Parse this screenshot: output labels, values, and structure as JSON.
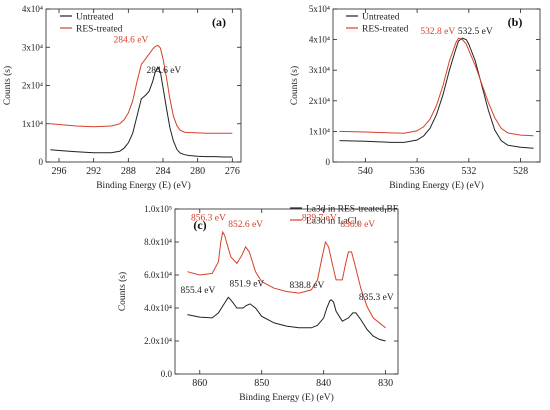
{
  "chart_data": [
    {
      "id": "a",
      "type": "line",
      "panel_label": "(a)",
      "xlabel": "Binding Energy (E) (eV)",
      "ylabel": "Counts (s)",
      "xlim": [
        297.5,
        275.0
      ],
      "ylim": [
        0,
        40000
      ],
      "x_reversed": true,
      "x_ticks": [
        296,
        292,
        288,
        284,
        280,
        276
      ],
      "y_ticks": [
        {
          "value": 0,
          "label": "0"
        },
        {
          "value": 10000,
          "label": "1x10⁴"
        },
        {
          "value": 20000,
          "label": "2x10⁴"
        },
        {
          "value": 30000,
          "label": "3x10⁴"
        },
        {
          "value": 40000,
          "label": "4x10⁴"
        }
      ],
      "legend_position": "top-left",
      "series": [
        {
          "name": "Untreated",
          "color": "#222222",
          "x": [
            297,
            296,
            294,
            292,
            290,
            289,
            288.5,
            288,
            287.5,
            287,
            286.5,
            286,
            285.6,
            285.2,
            284.9,
            284.6,
            284.3,
            284,
            283.6,
            283.2,
            282.8,
            282.4,
            282,
            281.5,
            281,
            280,
            279,
            278,
            277,
            276
          ],
          "y": [
            3200,
            3000,
            2700,
            2400,
            2400,
            2800,
            3600,
            5000,
            7500,
            12000,
            16500,
            17500,
            18500,
            21000,
            23500,
            24800,
            23500,
            19500,
            14000,
            9000,
            5500,
            3300,
            2300,
            1900,
            1700,
            1500,
            1400,
            1400,
            1300,
            1300
          ]
        },
        {
          "name": "RES-treated",
          "color": "#d6402b",
          "x": [
            297,
            296,
            294,
            292,
            290,
            289,
            288.5,
            288,
            287.5,
            287,
            286.5,
            286,
            285.6,
            285.2,
            284.9,
            284.6,
            284.3,
            284,
            283.6,
            283.2,
            282.8,
            282.4,
            282,
            281.5,
            281,
            280,
            279,
            278,
            277,
            276
          ],
          "y": [
            10000,
            9800,
            9400,
            9200,
            9400,
            10000,
            11000,
            12800,
            16000,
            21000,
            25500,
            27000,
            28200,
            29500,
            30200,
            30500,
            29800,
            27000,
            22000,
            16500,
            12000,
            9500,
            8300,
            7800,
            7700,
            7600,
            7500,
            7500,
            7500,
            7500
          ]
        }
      ],
      "annotations": [
        {
          "text": "284.6 eV",
          "color": "#d6402b",
          "x": 287.7,
          "y": 31200
        },
        {
          "text": "284.6 eV",
          "color": "#222222",
          "x": 283.9,
          "y": 23300
        }
      ]
    },
    {
      "id": "b",
      "type": "line",
      "panel_label": "(b)",
      "xlabel": "Binding Energy (E) (eV)",
      "ylabel": "Counts (s)",
      "xlim": [
        542.5,
        526.5
      ],
      "ylim": [
        0,
        50000
      ],
      "x_reversed": true,
      "x_ticks": [
        540,
        536,
        532,
        528
      ],
      "y_ticks": [
        {
          "value": 0,
          "label": "0"
        },
        {
          "value": 10000,
          "label": "1x10⁴"
        },
        {
          "value": 20000,
          "label": "2x10⁴"
        },
        {
          "value": 30000,
          "label": "3x10⁴"
        },
        {
          "value": 40000,
          "label": "4x10⁴"
        },
        {
          "value": 50000,
          "label": "5x10⁴"
        }
      ],
      "legend_position": "top-left",
      "series": [
        {
          "name": "Untreated",
          "color": "#222222",
          "x": [
            542,
            540,
            538,
            537,
            536,
            535.5,
            535,
            534.5,
            534,
            533.5,
            533,
            532.8,
            532.5,
            532.2,
            532,
            531.5,
            531,
            530.5,
            530,
            529.5,
            529,
            528,
            527
          ],
          "y": [
            7000,
            6800,
            6400,
            6400,
            7200,
            8500,
            11000,
            15500,
            22000,
            30000,
            37000,
            39500,
            40500,
            40000,
            38500,
            33000,
            25000,
            17000,
            10500,
            7000,
            5500,
            4800,
            4500
          ]
        },
        {
          "name": "RES-treated",
          "color": "#d6402b",
          "x": [
            542,
            540,
            538,
            537,
            536,
            535.5,
            535,
            534.5,
            534,
            533.5,
            533,
            532.8,
            532.5,
            532.2,
            532,
            531.5,
            531,
            530.5,
            530,
            529.5,
            529,
            528,
            527
          ],
          "y": [
            10000,
            9800,
            9500,
            9400,
            10200,
            11500,
            14000,
            18500,
            25000,
            33000,
            39000,
            40500,
            40000,
            38500,
            36500,
            31500,
            25500,
            19500,
            14500,
            11000,
            9500,
            8800,
            8600
          ]
        }
      ],
      "annotations": [
        {
          "text": "532.8 eV",
          "color": "#d6402b",
          "x": 534.4,
          "y": 41800
        },
        {
          "text": "532.5 eV",
          "color": "#222222",
          "x": 531.5,
          "y": 41800
        }
      ]
    },
    {
      "id": "c",
      "type": "line",
      "panel_label": "(c)",
      "xlabel": "Binding Energy (E) (eV)",
      "ylabel": "Counts (s)",
      "xlim": [
        864,
        828
      ],
      "ylim": [
        0,
        100000
      ],
      "x_reversed": true,
      "x_ticks": [
        860,
        850,
        840,
        830
      ],
      "y_ticks": [
        {
          "value": 0,
          "label": "0.0"
        },
        {
          "value": 20000,
          "label": "2.0x10⁴"
        },
        {
          "value": 40000,
          "label": "4.0x10⁴"
        },
        {
          "value": 60000,
          "label": "6.0x10⁴"
        },
        {
          "value": 80000,
          "label": "8.0x10⁴"
        },
        {
          "value": 100000,
          "label": "1.0x10⁵"
        }
      ],
      "legend_position": "top-right",
      "series": [
        {
          "name": "La3d in RES-treated BF",
          "color": "#222222",
          "x": [
            862,
            860,
            858,
            857,
            856,
            855.4,
            855,
            854,
            853,
            852.5,
            851.9,
            851,
            850,
            848,
            846,
            844,
            842,
            841,
            840,
            839.5,
            839,
            838.8,
            838.4,
            838,
            837,
            836,
            835.3,
            834.8,
            834,
            833,
            832,
            831,
            830
          ],
          "y": [
            36000,
            34500,
            34000,
            37000,
            43000,
            46500,
            45000,
            40000,
            40000,
            41500,
            42500,
            40000,
            35000,
            31000,
            29000,
            28000,
            28000,
            29500,
            34000,
            40000,
            44500,
            45000,
            43500,
            38000,
            32000,
            34000,
            37000,
            37000,
            33000,
            27000,
            23000,
            21000,
            20000
          ]
        },
        {
          "name": "Lа3d in LaCl₃",
          "color": "#d6402b",
          "x": [
            862,
            860,
            858,
            857,
            856.6,
            856.3,
            856,
            855,
            854,
            853.2,
            852.6,
            852,
            851,
            850,
            848,
            846,
            844,
            842,
            841,
            840.3,
            839.7,
            839.2,
            838.5,
            838,
            837,
            836.5,
            836,
            835.5,
            835,
            834,
            833,
            832,
            830
          ],
          "y": [
            62000,
            60000,
            61000,
            68000,
            80000,
            86000,
            84000,
            71000,
            67000,
            72000,
            77000,
            74000,
            62000,
            56000,
            52000,
            50000,
            49000,
            51000,
            57000,
            70000,
            80000,
            77000,
            65000,
            57000,
            57000,
            66000,
            74000,
            74000,
            67000,
            52000,
            41000,
            34000,
            28000
          ]
        }
      ],
      "annotations": [
        {
          "text": "856.3 eV",
          "color": "#d6402b",
          "x": 858.6,
          "y": 93000
        },
        {
          "text": "852.6 eV",
          "color": "#d6402b",
          "x": 852.6,
          "y": 89000
        },
        {
          "text": "839.7 eV",
          "color": "#d6402b",
          "x": 840.7,
          "y": 93000
        },
        {
          "text": "836.0 eV",
          "color": "#d6402b",
          "x": 834.5,
          "y": 89000
        },
        {
          "text": "855.4 eV",
          "color": "#222222",
          "x": 860.3,
          "y": 49000
        },
        {
          "text": "851.9 eV",
          "color": "#222222",
          "x": 852.4,
          "y": 53000
        },
        {
          "text": "838.8 eV",
          "color": "#222222",
          "x": 842.7,
          "y": 52000
        },
        {
          "text": "835.3 eV",
          "color": "#222222",
          "x": 831.5,
          "y": 45000
        }
      ]
    }
  ]
}
